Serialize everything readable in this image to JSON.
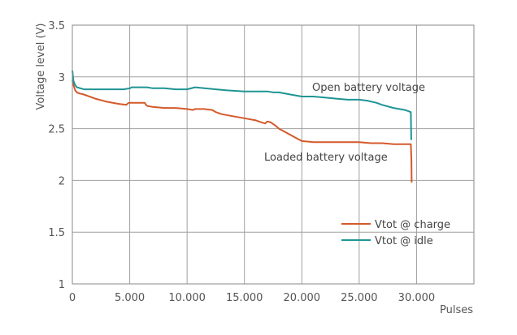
{
  "chart_data": {
    "type": "line",
    "xlabel": "Pulses",
    "ylabel": "Voltage level (V)",
    "xlim": [
      0,
      35000
    ],
    "ylim": [
      1,
      3.5
    ],
    "xticks": [
      0,
      5000,
      10000,
      15000,
      20000,
      25000,
      30000
    ],
    "xtick_labels": [
      "0",
      "5.000",
      "10.000",
      "15.000",
      "20.000",
      "25.000",
      "30.000"
    ],
    "yticks": [
      1,
      1.5,
      2,
      2.5,
      3,
      3.5
    ],
    "ytick_labels": [
      "1",
      "1.5",
      "2",
      "2.5",
      "3",
      "3.5"
    ],
    "grid": true,
    "legend_position": "lower-right",
    "series": [
      {
        "name": "Vtot @ charge",
        "color": "#d4592a",
        "x": [
          0,
          100,
          250,
          400,
          600,
          1000,
          2000,
          3000,
          4000,
          4700,
          4900,
          5600,
          6300,
          6500,
          7000,
          8000,
          9000,
          10000,
          10500,
          10700,
          11500,
          12200,
          12500,
          13000,
          14000,
          15000,
          16000,
          16500,
          16800,
          17000,
          17300,
          17700,
          18000,
          18500,
          19000,
          19500,
          20000,
          21000,
          22000,
          23000,
          24000,
          25000,
          26000,
          27000,
          28000,
          29500,
          29550,
          29570
        ],
        "y": [
          2.97,
          2.92,
          2.87,
          2.85,
          2.84,
          2.83,
          2.79,
          2.76,
          2.74,
          2.73,
          2.75,
          2.75,
          2.75,
          2.72,
          2.71,
          2.7,
          2.7,
          2.69,
          2.68,
          2.69,
          2.69,
          2.68,
          2.66,
          2.64,
          2.62,
          2.6,
          2.58,
          2.56,
          2.55,
          2.57,
          2.56,
          2.53,
          2.5,
          2.47,
          2.44,
          2.41,
          2.38,
          2.37,
          2.37,
          2.37,
          2.37,
          2.37,
          2.36,
          2.36,
          2.35,
          2.35,
          2.2,
          1.98
        ]
      },
      {
        "name": "Vtot @ idle",
        "color": "#1f9494",
        "x": [
          0,
          100,
          250,
          400,
          700,
          1000,
          1500,
          3000,
          4500,
          5000,
          5200,
          6000,
          6500,
          7000,
          8000,
          9000,
          10000,
          10700,
          11500,
          12500,
          13500,
          15000,
          16000,
          17000,
          17500,
          18000,
          19000,
          20000,
          21000,
          22000,
          23000,
          24000,
          25000,
          25700,
          26500,
          27000,
          28000,
          29000,
          29500,
          29520,
          29540
        ],
        "y": [
          3.06,
          2.96,
          2.92,
          2.9,
          2.89,
          2.88,
          2.88,
          2.88,
          2.88,
          2.89,
          2.9,
          2.9,
          2.9,
          2.89,
          2.89,
          2.88,
          2.88,
          2.9,
          2.89,
          2.88,
          2.87,
          2.86,
          2.86,
          2.86,
          2.85,
          2.85,
          2.83,
          2.81,
          2.81,
          2.8,
          2.79,
          2.78,
          2.78,
          2.77,
          2.75,
          2.73,
          2.7,
          2.68,
          2.66,
          2.5,
          2.39
        ]
      }
    ],
    "annotations": [
      {
        "text": "Open battery voltage"
      },
      {
        "text": "Loaded battery voltage"
      }
    ]
  }
}
